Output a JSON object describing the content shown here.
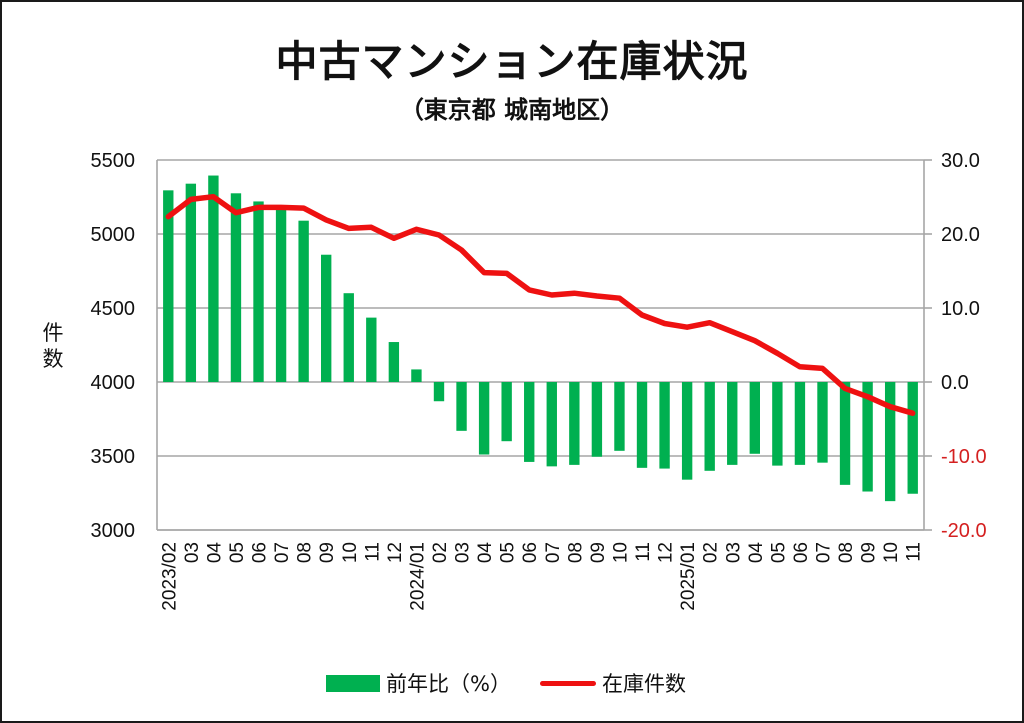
{
  "colors": {
    "bar": "#00b050",
    "line": "#ee1111",
    "grid": "#a6a6a6",
    "negative_tick": "#d42020",
    "text": "#111111"
  },
  "chart_data": {
    "type": "bar",
    "combo": "bar+line",
    "title": "中古マンション在庫状況",
    "subtitle": "（東京都 城南地区）",
    "ylabel": "件数",
    "xlabel": "",
    "categories": [
      "2023/02",
      "03",
      "04",
      "05",
      "06",
      "07",
      "08",
      "09",
      "10",
      "11",
      "12",
      "2024/01",
      "02",
      "03",
      "04",
      "05",
      "06",
      "07",
      "08",
      "09",
      "10",
      "11",
      "12",
      "2025/01",
      "02",
      "03",
      "04",
      "05",
      "06",
      "07",
      "08",
      "09",
      "10",
      "11"
    ],
    "series": [
      {
        "name": "前年比（%）",
        "type": "bar",
        "axis": "right",
        "values": [
          25.9,
          26.8,
          27.9,
          25.5,
          24.4,
          23.5,
          21.8,
          17.2,
          12.0,
          8.7,
          5.4,
          1.7,
          -2.6,
          -6.6,
          -9.8,
          -8.0,
          -10.8,
          -11.4,
          -11.2,
          -10.1,
          -9.3,
          -11.6,
          -11.7,
          -13.2,
          -12.0,
          -11.2,
          -9.7,
          -11.3,
          -11.2,
          -10.9,
          -13.9,
          -14.8,
          -16.1,
          -15.1
        ]
      },
      {
        "name": "在庫件数",
        "type": "line",
        "axis": "left",
        "values": [
          5117,
          5234,
          5252,
          5144,
          5180,
          5180,
          5175,
          5095,
          5038,
          5045,
          4971,
          5032,
          4993,
          4892,
          4739,
          4734,
          4622,
          4588,
          4600,
          4581,
          4566,
          4453,
          4395,
          4370,
          4401,
          4340,
          4279,
          4194,
          4103,
          4092,
          3957,
          3901,
          3833,
          3789
        ]
      }
    ],
    "ylim": [
      3000,
      5500
    ],
    "y2lim": [
      -20,
      30
    ],
    "yticks": [
      "5500",
      "5000",
      "4500",
      "4000",
      "3500",
      "3000"
    ],
    "y2ticks": [
      "30.0",
      "20.0",
      "10.0",
      "0.0",
      "-10.0",
      "-20.0"
    ],
    "grid": true,
    "legend_position": "bottom-center"
  }
}
